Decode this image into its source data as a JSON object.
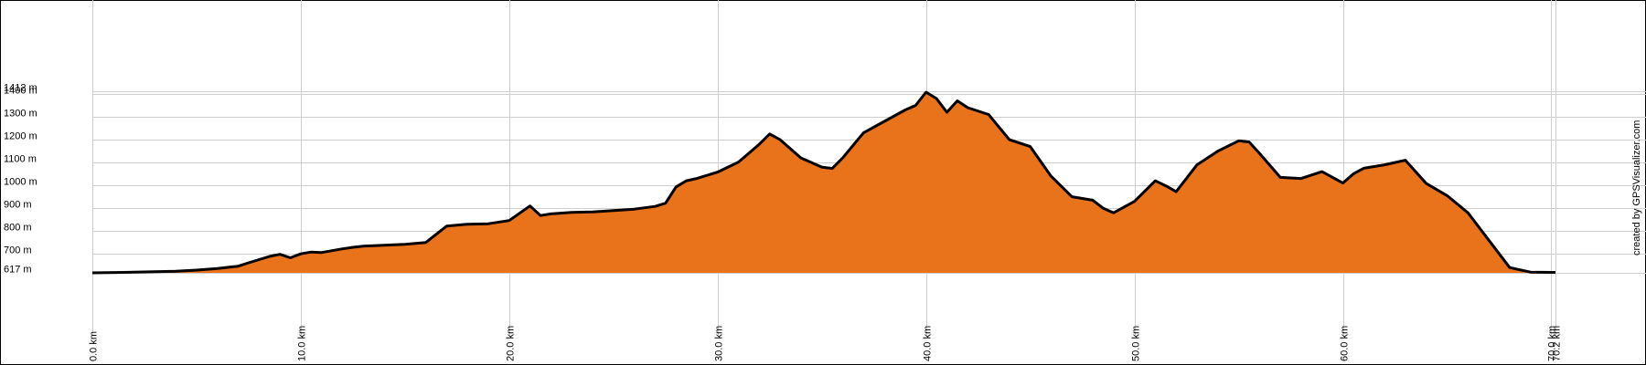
{
  "chart_data": {
    "type": "area",
    "title": "",
    "xlabel": "",
    "ylabel": "",
    "credit": "created by GPSVisualizer.com",
    "fill_color": "#e8731a",
    "line_color": "#000000",
    "grid": true,
    "xlim": [
      0,
      70.2
    ],
    "ylim": [
      617,
      1412
    ],
    "x_ticks": [
      {
        "value": 0,
        "label": "0.0 km"
      },
      {
        "value": 10,
        "label": "10.0 km"
      },
      {
        "value": 20,
        "label": "20.0 km"
      },
      {
        "value": 30,
        "label": "30.0 km"
      },
      {
        "value": 40,
        "label": "40.0 km"
      },
      {
        "value": 50,
        "label": "50.0 km"
      },
      {
        "value": 60,
        "label": "60.0 km"
      },
      {
        "value": 70,
        "label": "70.0 km"
      },
      {
        "value": 70.2,
        "label": "70.2 km"
      }
    ],
    "y_ticks": [
      {
        "value": 617,
        "label": "617 m"
      },
      {
        "value": 700,
        "label": "700 m"
      },
      {
        "value": 800,
        "label": "800 m"
      },
      {
        "value": 900,
        "label": "900 m"
      },
      {
        "value": 1000,
        "label": "1000 m"
      },
      {
        "value": 1100,
        "label": "1100 m"
      },
      {
        "value": 1200,
        "label": "1200 m"
      },
      {
        "value": 1300,
        "label": "1300 m"
      },
      {
        "value": 1400,
        "label": "1400 m"
      },
      {
        "value": 1412,
        "label": "1412 m"
      }
    ],
    "series": [
      {
        "x": [
          0,
          1.5,
          2.5,
          4,
          5,
          6,
          7,
          7.5,
          8,
          8.5,
          9,
          9.5,
          10,
          10.5,
          11,
          12,
          12.5,
          13,
          14,
          15,
          16,
          17,
          18,
          19,
          20,
          21,
          21.5,
          22,
          23,
          24,
          25,
          26,
          27,
          27.5,
          28,
          28.5,
          29,
          30,
          31,
          32,
          32.5,
          33,
          34,
          35,
          35.5,
          36,
          37,
          38,
          39,
          39.5,
          40,
          40.5,
          41,
          41.5,
          42,
          43,
          44,
          45,
          46,
          47,
          48,
          48.5,
          49,
          50,
          51,
          51.5,
          52,
          53,
          54,
          55,
          55.5,
          56,
          57,
          58,
          59,
          60,
          60.5,
          61,
          62,
          63,
          64,
          65,
          66,
          67,
          68,
          69,
          70,
          70.2
        ],
        "y": [
          617,
          619,
          621,
          624,
          629,
          636,
          646,
          661,
          675,
          689,
          698,
          683,
          700,
          708,
          706,
          722,
          729,
          734,
          738,
          742,
          750,
          822,
          830,
          832,
          846,
          910,
          868,
          875,
          882,
          884,
          890,
          896,
          908,
          922,
          993,
          1020,
          1030,
          1058,
          1102,
          1180,
          1225,
          1200,
          1120,
          1080,
          1074,
          1120,
          1230,
          1280,
          1330,
          1350,
          1408,
          1380,
          1320,
          1370,
          1340,
          1310,
          1200,
          1170,
          1040,
          950,
          935,
          900,
          880,
          930,
          1020,
          998,
          972,
          1090,
          1150,
          1195,
          1190,
          1140,
          1035,
          1030,
          1060,
          1010,
          1050,
          1075,
          1090,
          1110,
          1008,
          955,
          880,
          760,
          640,
          620,
          619,
          619
        ]
      }
    ]
  }
}
